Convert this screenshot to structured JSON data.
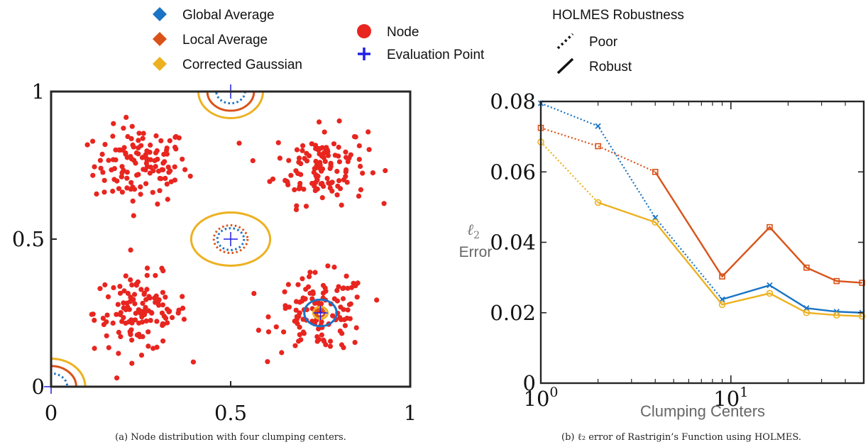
{
  "legend": {
    "markers": [
      {
        "label": "Global Average",
        "color": "#1a73c5",
        "shape": "diamond"
      },
      {
        "label": "Local Average",
        "color": "#d95319",
        "shape": "diamond"
      },
      {
        "label": "Corrected Gaussian",
        "color": "#edb120",
        "shape": "diamond"
      },
      {
        "label": "Node",
        "color": "#e8251f",
        "shape": "circle"
      },
      {
        "label": "Evaluation Point",
        "color": "#1f1fe6",
        "shape": "plus"
      }
    ],
    "robustness_title": "HOLMES Robustness",
    "robustness": [
      {
        "label": "Poor",
        "style": "dotted"
      },
      {
        "label": "Robust",
        "style": "solid"
      }
    ]
  },
  "captions": {
    "a": "(a) Node distribution with four clumping centers.",
    "b": "(b) ℓ₂ error of Rastrigin’s Function using HOLMES."
  },
  "chart_data": [
    {
      "type": "scatter",
      "xlim": [
        0,
        1
      ],
      "ylim": [
        0,
        1
      ],
      "xticks": [
        "0",
        "0.5",
        "1"
      ],
      "yticks": [
        "0",
        "0.5",
        "1"
      ],
      "node_color": "#e8251f",
      "clusters": [
        {
          "center": [
            0.25,
            0.75
          ],
          "count": 125,
          "spread": 0.065
        },
        {
          "center": [
            0.75,
            0.75
          ],
          "count": 125,
          "spread": 0.065
        },
        {
          "center": [
            0.25,
            0.25
          ],
          "count": 125,
          "spread": 0.065
        },
        {
          "center": [
            0.75,
            0.25
          ],
          "count": 125,
          "spread": 0.065
        }
      ],
      "evaluation_points": [
        [
          0.5,
          1.0
        ],
        [
          0.5,
          0.5
        ],
        [
          0.75,
          0.25
        ],
        [
          0.0,
          0.0
        ]
      ],
      "radii": [
        {
          "center": [
            0.5,
            1.0
          ],
          "method": "Corrected Gaussian",
          "style": "solid",
          "rx": 0.09,
          "ry": 0.09
        },
        {
          "center": [
            0.5,
            1.0
          ],
          "method": "Local Average",
          "style": "solid",
          "rx": 0.065,
          "ry": 0.065
        },
        {
          "center": [
            0.5,
            1.0
          ],
          "method": "Global Average",
          "style": "dotted",
          "rx": 0.04,
          "ry": 0.04
        },
        {
          "center": [
            0.5,
            0.5
          ],
          "method": "Corrected Gaussian",
          "style": "solid",
          "rx": 0.11,
          "ry": 0.09
        },
        {
          "center": [
            0.5,
            0.5
          ],
          "method": "Local Average",
          "style": "dotted",
          "rx": 0.047,
          "ry": 0.047
        },
        {
          "center": [
            0.5,
            0.5
          ],
          "method": "Global Average",
          "style": "dotted",
          "rx": 0.037,
          "ry": 0.037
        },
        {
          "center": [
            0.75,
            0.25
          ],
          "method": "Global Average",
          "style": "solid",
          "rx": 0.045,
          "ry": 0.045
        },
        {
          "center": [
            0.75,
            0.25
          ],
          "method": "Corrected Gaussian",
          "style": "solid",
          "rx": 0.02,
          "ry": 0.02
        },
        {
          "center": [
            0.75,
            0.25
          ],
          "method": "Local Average",
          "style": "solid",
          "rx": 0.012,
          "ry": 0.012
        },
        {
          "center": [
            0.0,
            0.0
          ],
          "method": "Corrected Gaussian",
          "style": "solid",
          "rx": 0.095,
          "ry": 0.095
        },
        {
          "center": [
            0.0,
            0.0
          ],
          "method": "Local Average",
          "style": "solid",
          "rx": 0.07,
          "ry": 0.07
        },
        {
          "center": [
            0.0,
            0.0
          ],
          "method": "Global Average",
          "style": "dotted",
          "rx": 0.045,
          "ry": 0.045
        }
      ]
    },
    {
      "type": "line",
      "xscale": "log",
      "xlim": [
        1,
        50
      ],
      "ylim": [
        0,
        0.08
      ],
      "xlabel": "Clumping Centers",
      "ylabel_symbol": "ℓ",
      "ylabel_sub": "2",
      "ylabel": "Error",
      "xticks": [
        {
          "value": 1,
          "base": "10",
          "exp": "0"
        },
        {
          "value": 10,
          "base": "10",
          "exp": "1"
        }
      ],
      "yticks": [
        "0",
        "0.02",
        "0.04",
        "0.06",
        "0.08"
      ],
      "ytick_values": [
        0,
        0.02,
        0.04,
        0.06,
        0.08
      ],
      "x": [
        1,
        2,
        4,
        9,
        16,
        25,
        36,
        49
      ],
      "series": [
        {
          "name": "Global Average",
          "color": "#1a73c5",
          "marker": "x",
          "values": [
            0.0795,
            0.073,
            0.047,
            0.0238,
            0.0278,
            0.0213,
            0.0203,
            0.02
          ],
          "poor_until_index": 3
        },
        {
          "name": "Local Average",
          "color": "#d95319",
          "marker": "square",
          "values": [
            0.0725,
            0.0673,
            0.06,
            0.0303,
            0.0443,
            0.0328,
            0.029,
            0.0285
          ],
          "poor_until_index": 2
        },
        {
          "name": "Corrected Gaussian",
          "color": "#edb120",
          "marker": "circle",
          "values": [
            0.0685,
            0.0513,
            0.0457,
            0.0223,
            0.0255,
            0.02,
            0.0193,
            0.019
          ],
          "poor_until_index": 1
        }
      ]
    }
  ]
}
